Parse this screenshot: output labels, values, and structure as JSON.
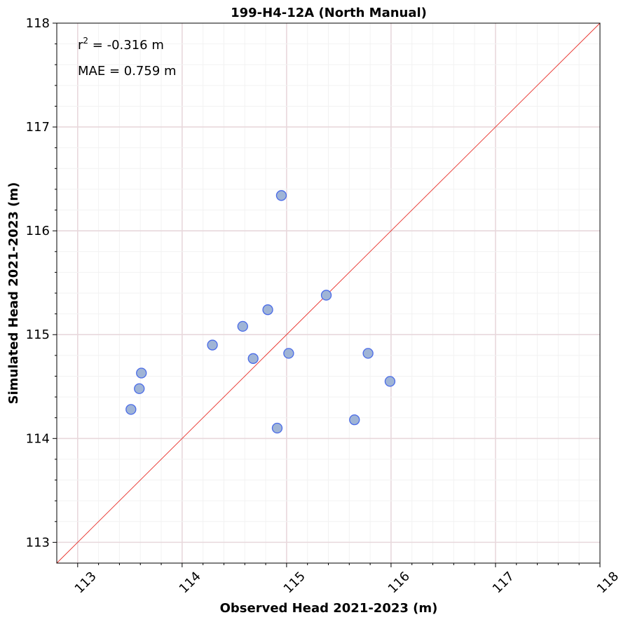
{
  "chart_data": {
    "type": "scatter",
    "title": "199-H4-12A (North Manual)",
    "xlabel": "Observed Head 2021-2023 (m)",
    "ylabel": "Simulated Head 2021-2023 (m)",
    "xlim": [
      112.8,
      118
    ],
    "ylim": [
      112.8,
      118
    ],
    "x_ticks": [
      "113",
      "114",
      "115",
      "116",
      "117",
      "118"
    ],
    "y_ticks": [
      "113",
      "114",
      "115",
      "116",
      "117",
      "118"
    ],
    "minor_step": 0.2,
    "grid": true,
    "reference_line": "1:1",
    "annotations": {
      "r2_prefix": "r",
      "r2_sup": "2",
      "r2_value": " = -0.316 m",
      "mae": "MAE = 0.759 m"
    },
    "series": [
      {
        "x": [
          114.95,
          115.38,
          114.82,
          114.58,
          114.29,
          114.68,
          115.02,
          115.78,
          115.99,
          113.61,
          113.59,
          113.51,
          114.91,
          115.65
        ],
        "y": [
          116.34,
          115.38,
          115.24,
          115.08,
          114.9,
          114.77,
          114.82,
          114.82,
          114.55,
          114.63,
          114.48,
          114.28,
          114.1,
          114.18
        ]
      }
    ],
    "colors": {
      "marker_fill": "#9fb4d6",
      "marker_edge": "#4a6be8",
      "reference_line": "#e8302a",
      "major_grid": "#e8d8dc",
      "minor_grid": "#f2f2f2"
    }
  }
}
